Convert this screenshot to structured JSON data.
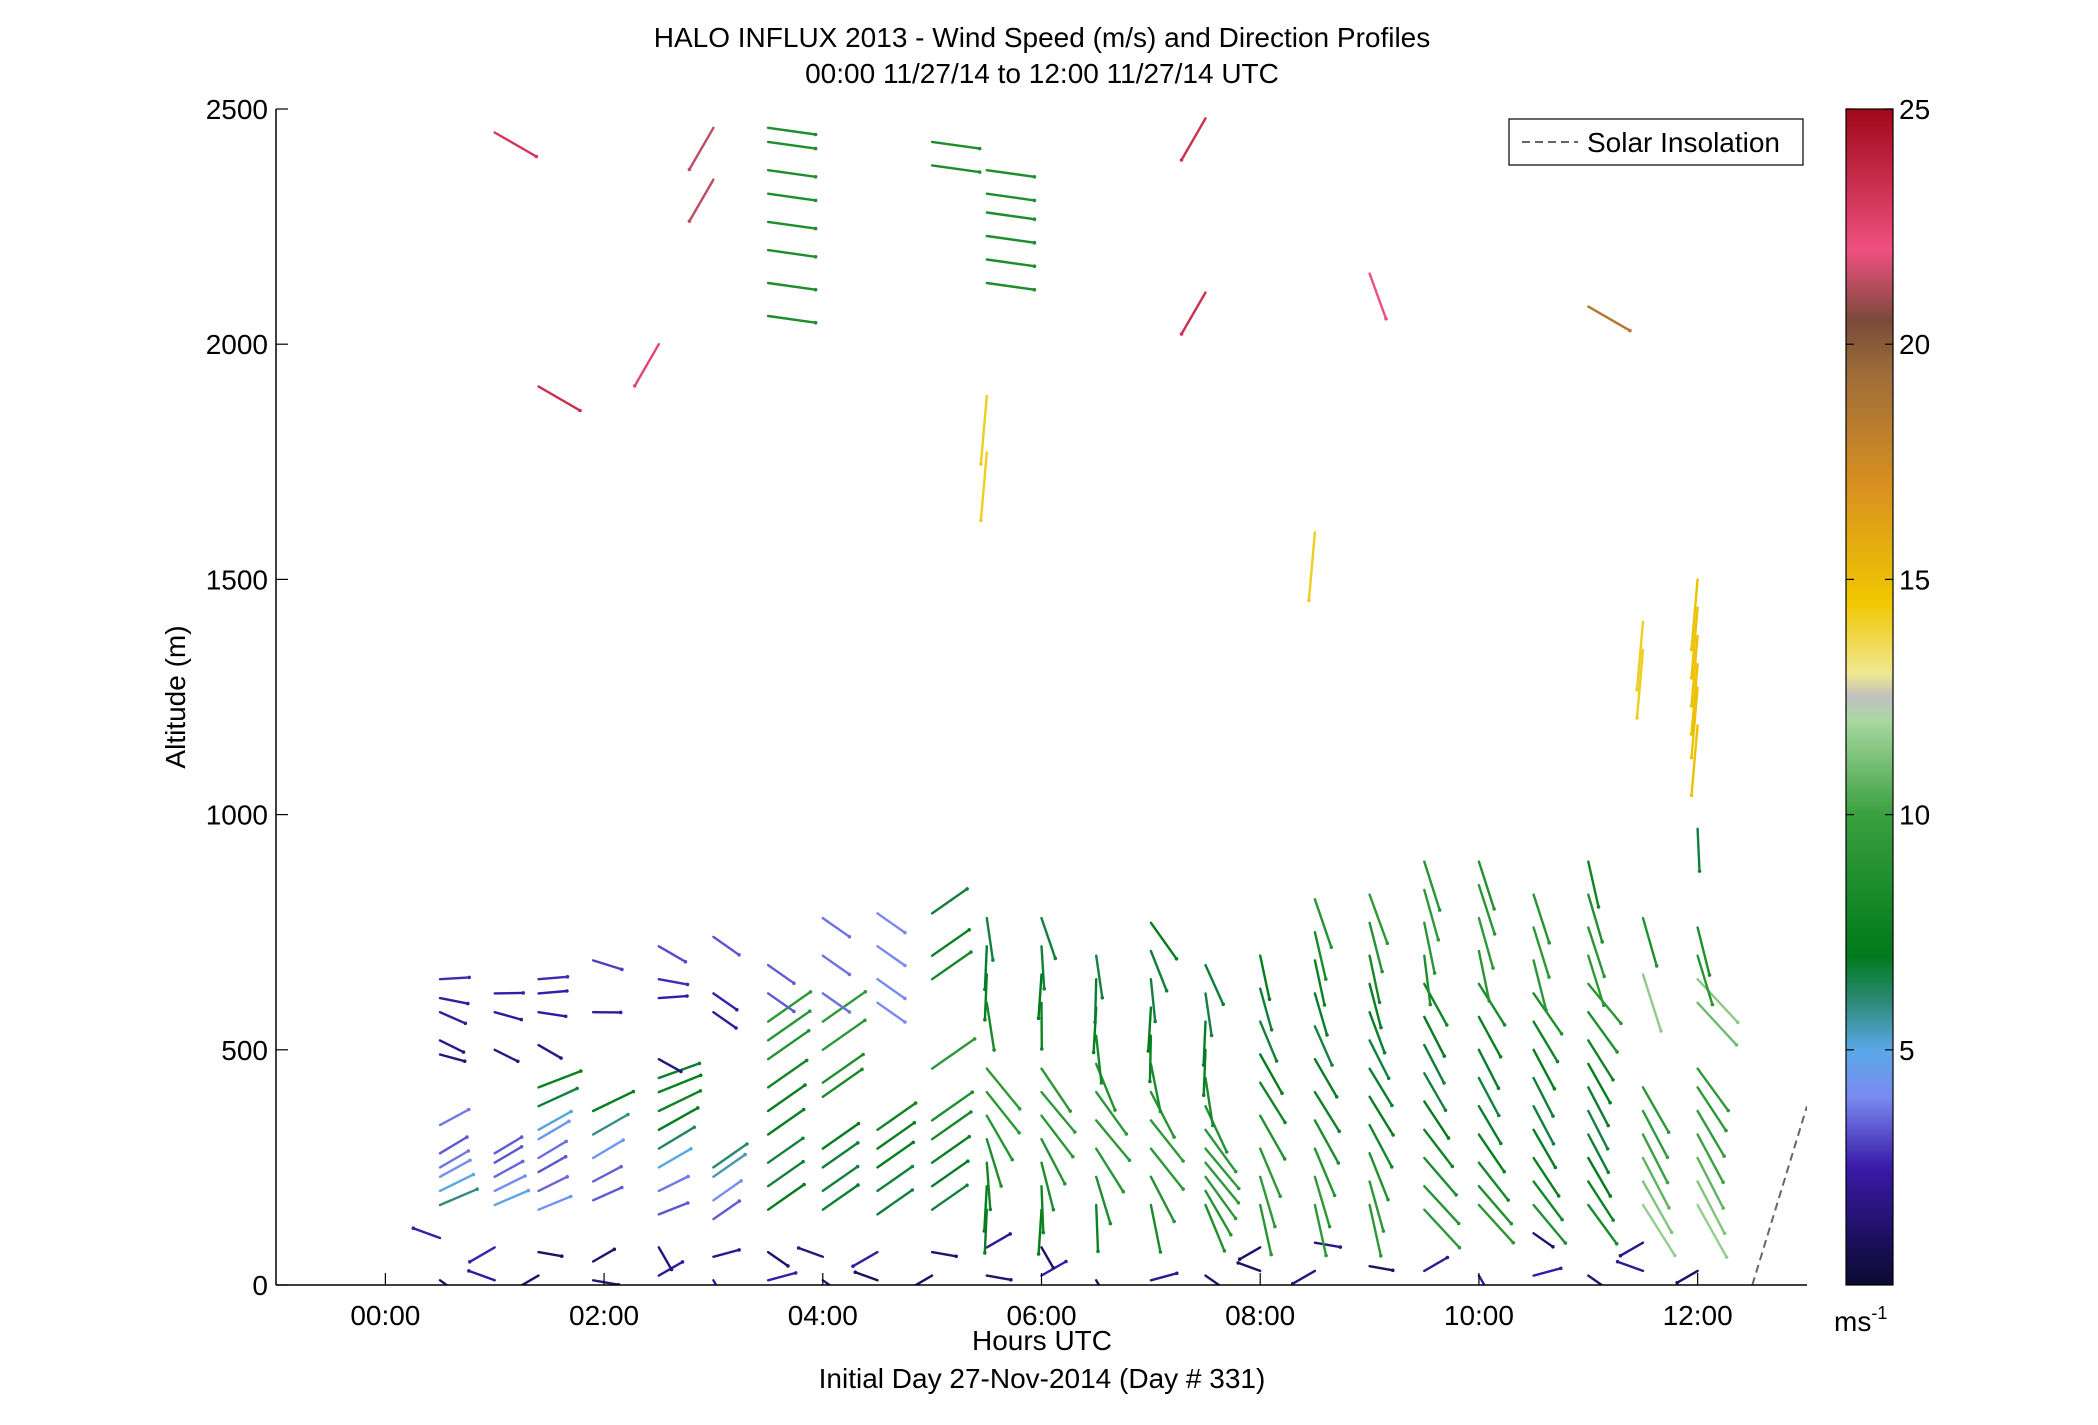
{
  "chart_data": {
    "type": "quiver",
    "title": "HALO INFLUX 2013 - Wind Speed (m/s) and Direction Profiles",
    "subtitle": "00:00 11/27/14 to 12:00 11/27/14  UTC",
    "xlabel": "Hours UTC",
    "xlabel2": "Initial Day 27-Nov-2014 (Day # 331)",
    "ylabel": "Altitude (m)",
    "xlim": [
      -1,
      13
    ],
    "ylim": [
      0,
      2500
    ],
    "x_ticks": [
      0,
      2,
      4,
      6,
      8,
      10,
      12
    ],
    "x_tick_labels": [
      "00:00",
      "02:00",
      "04:00",
      "06:00",
      "08:00",
      "10:00",
      "12:00"
    ],
    "y_ticks": [
      0,
      500,
      1000,
      1500,
      2000,
      2500
    ],
    "y_tick_labels": [
      "0",
      "500",
      "1000",
      "1500",
      "2000",
      "2500"
    ],
    "legend": {
      "entries": [
        "Solar Insolation"
      ],
      "position": "top-right"
    },
    "solar_insolation": {
      "x": [
        12.5,
        13.0
      ],
      "y": [
        0,
        380
      ]
    },
    "colorbar": {
      "range": [
        0,
        25
      ],
      "ticks": [
        5,
        10,
        15,
        20,
        25
      ],
      "tick_labels": [
        "5",
        "10",
        "15",
        "20",
        "25"
      ],
      "unit_label": "ms",
      "unit_exponent": "-1",
      "stops": [
        {
          "v": 0,
          "c": "#0a0a30"
        },
        {
          "v": 2.5,
          "c": "#3a1aa8"
        },
        {
          "v": 4,
          "c": "#7a8af0"
        },
        {
          "v": 5,
          "c": "#5aa8e8"
        },
        {
          "v": 6,
          "c": "#2e8a7a"
        },
        {
          "v": 7,
          "c": "#007a1a"
        },
        {
          "v": 10,
          "c": "#3aa040"
        },
        {
          "v": 12,
          "c": "#a8d8a0"
        },
        {
          "v": 12.5,
          "c": "#c0c0c0"
        },
        {
          "v": 13,
          "c": "#f0e890"
        },
        {
          "v": 14.5,
          "c": "#f0c800"
        },
        {
          "v": 17,
          "c": "#d89020"
        },
        {
          "v": 19.5,
          "c": "#9a6a3a"
        },
        {
          "v": 20.5,
          "c": "#7a4a3a"
        },
        {
          "v": 22,
          "c": "#f05080"
        },
        {
          "v": 25,
          "c": "#a00818"
        }
      ]
    },
    "profiles": [
      {
        "t": 0.5,
        "alts": [
          10,
          100,
          170,
          200,
          230,
          250,
          280,
          340,
          490,
          520,
          580,
          610,
          650
        ]
      },
      {
        "t": 1.0,
        "alts": [
          10,
          80,
          170,
          200,
          230,
          260,
          280,
          500,
          580,
          620,
          2450
        ]
      },
      {
        "t": 1.4,
        "alts": [
          20,
          70,
          160,
          200,
          240,
          270,
          310,
          330,
          380,
          420,
          510,
          580,
          620,
          650,
          1910
        ]
      },
      {
        "t": 1.9,
        "alts": [
          10,
          50,
          180,
          220,
          270,
          320,
          370,
          580,
          690
        ]
      },
      {
        "t": 2.5,
        "alts": [
          20,
          80,
          150,
          200,
          250,
          290,
          330,
          370,
          410,
          440,
          480,
          610,
          650,
          720,
          2000
        ]
      },
      {
        "t": 3.0,
        "alts": [
          10,
          60,
          140,
          180,
          230,
          250,
          580,
          620,
          740,
          2460,
          2350
        ]
      },
      {
        "t": 3.5,
        "alts": [
          10,
          70,
          160,
          210,
          260,
          320,
          370,
          420,
          480,
          520,
          560,
          620,
          680,
          2060,
          2130,
          2200,
          2260,
          2320,
          2370,
          2430,
          2460
        ]
      },
      {
        "t": 4.0,
        "alts": [
          10,
          60,
          160,
          200,
          250,
          290,
          400,
          430,
          500,
          560,
          620,
          700,
          780
        ]
      },
      {
        "t": 4.5,
        "alts": [
          10,
          70,
          150,
          200,
          250,
          290,
          330,
          600,
          650,
          720,
          790
        ]
      },
      {
        "t": 5.0,
        "alts": [
          20,
          70,
          160,
          210,
          260,
          310,
          350,
          460,
          650,
          700,
          790,
          2380,
          2430
        ]
      },
      {
        "t": 5.5,
        "alts": [
          20,
          80,
          160,
          210,
          260,
          310,
          360,
          410,
          460,
          600,
          660,
          720,
          780,
          1770,
          1890,
          2130,
          2180,
          2230,
          2280,
          2320,
          2370
        ]
      },
      {
        "t": 6.0,
        "alts": [
          20,
          80,
          160,
          210,
          260,
          310,
          360,
          410,
          460,
          600,
          660,
          720,
          780
        ]
      },
      {
        "t": 6.5,
        "alts": [
          10,
          170,
          230,
          290,
          350,
          410,
          470,
          530,
          590,
          650,
          700
        ]
      },
      {
        "t": 7.0,
        "alts": [
          10,
          170,
          230,
          290,
          350,
          410,
          470,
          530,
          590,
          650,
          710,
          770
        ]
      },
      {
        "t": 7.5,
        "alts": [
          20,
          170,
          200,
          230,
          260,
          290,
          330,
          380,
          440,
          500,
          560,
          620,
          680,
          2110,
          2480
        ]
      },
      {
        "t": 8.0,
        "alts": [
          30,
          80,
          170,
          230,
          290,
          360,
          430,
          490,
          560,
          630,
          700
        ]
      },
      {
        "t": 8.5,
        "alts": [
          30,
          90,
          170,
          230,
          290,
          350,
          410,
          480,
          550,
          620,
          690,
          750,
          820,
          1600
        ]
      },
      {
        "t": 9.0,
        "alts": [
          40,
          170,
          220,
          280,
          340,
          400,
          460,
          520,
          580,
          640,
          700,
          770,
          830,
          2150
        ]
      },
      {
        "t": 9.5,
        "alts": [
          30,
          160,
          210,
          270,
          330,
          390,
          450,
          510,
          570,
          640,
          700,
          770,
          840,
          900
        ]
      },
      {
        "t": 10.0,
        "alts": [
          20,
          170,
          210,
          260,
          320,
          380,
          440,
          500,
          570,
          640,
          710,
          780,
          850,
          900
        ]
      },
      {
        "t": 10.5,
        "alts": [
          20,
          110,
          170,
          220,
          270,
          330,
          380,
          440,
          500,
          560,
          620,
          690,
          760,
          830
        ]
      },
      {
        "t": 11.0,
        "alts": [
          20,
          170,
          220,
          270,
          320,
          370,
          420,
          470,
          520,
          580,
          640,
          700,
          760,
          830,
          900,
          2080
        ]
      },
      {
        "t": 11.5,
        "alts": [
          30,
          90,
          170,
          220,
          270,
          320,
          370,
          420,
          660,
          780,
          1350,
          1410
        ]
      },
      {
        "t": 12.0,
        "alts": [
          30,
          170,
          220,
          270,
          320,
          370,
          420,
          460,
          600,
          650,
          700,
          760,
          970,
          1190,
          1270,
          1320,
          1380,
          1440,
          1500
        ]
      }
    ]
  }
}
